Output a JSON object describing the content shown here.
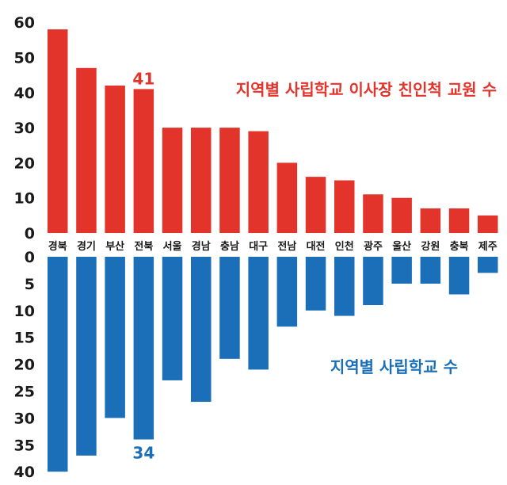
{
  "chart_data": [
    {
      "type": "bar",
      "title": "지역별 사립학교 이사장 친인척 교원 수",
      "categories": [
        "경북",
        "경기",
        "부산",
        "전북",
        "서울",
        "경남",
        "충남",
        "대구",
        "전남",
        "대전",
        "인천",
        "광주",
        "울산",
        "강원",
        "충북",
        "제주"
      ],
      "values": [
        58,
        47,
        42,
        41,
        30,
        30,
        30,
        29,
        20,
        16,
        15,
        11,
        10,
        7,
        7,
        5
      ],
      "ylim": [
        0,
        60
      ],
      "yticks": [
        0,
        10,
        20,
        30,
        40,
        50,
        60
      ],
      "color": "#e3342b",
      "annotation": {
        "category": "전북",
        "label": "41"
      }
    },
    {
      "type": "bar",
      "title": "지역별 사립학교 수",
      "categories": [
        "경북",
        "경기",
        "부산",
        "전북",
        "서울",
        "경남",
        "충남",
        "대구",
        "전남",
        "대전",
        "인천",
        "광주",
        "울산",
        "강원",
        "충북",
        "제주"
      ],
      "values": [
        40,
        37,
        30,
        34,
        23,
        27,
        19,
        21,
        13,
        10,
        11,
        9,
        5,
        5,
        7,
        3
      ],
      "ylim": [
        0,
        40
      ],
      "yticks": [
        0,
        5,
        10,
        15,
        20,
        25,
        30,
        35,
        40
      ],
      "direction": "downward",
      "color": "#1a6fb8",
      "annotation": {
        "category": "전북",
        "label": "34"
      }
    }
  ]
}
